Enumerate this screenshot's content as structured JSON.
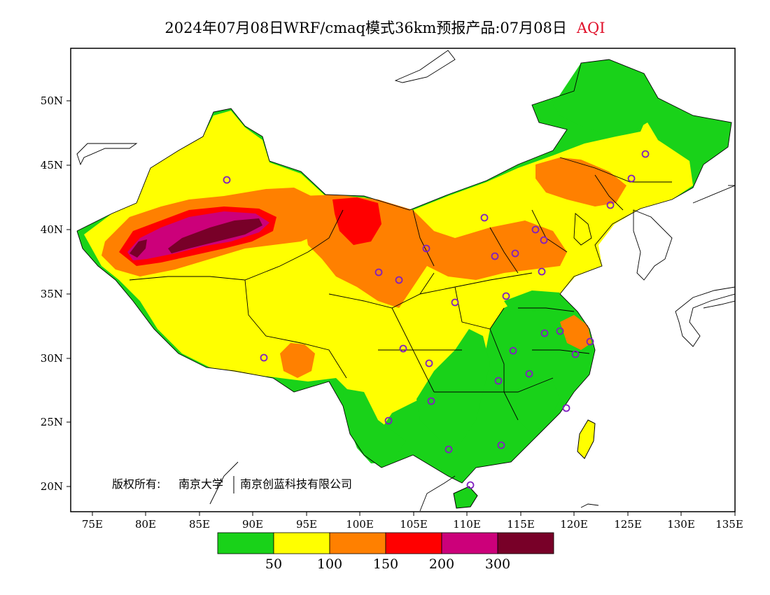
{
  "title": {
    "main": "2024年07月08日WRF/cmaq模式36km预报产品:07月08日",
    "variable": "AQI"
  },
  "axes": {
    "y_ticks": [
      "50N",
      "45N",
      "40N",
      "35N",
      "30N",
      "25N",
      "20N"
    ],
    "x_ticks": [
      "75E",
      "80E",
      "85E",
      "90E",
      "95E",
      "100E",
      "105E",
      "110E",
      "115E",
      "120E",
      "125E",
      "130E",
      "135E"
    ]
  },
  "copyright": {
    "label": "版权所有:",
    "org1": "南京大学",
    "org2": "南京创蓝科技有限公司"
  },
  "legend": {
    "colors": [
      "#19d219",
      "#ffff00",
      "#ff8000",
      "#ff0000",
      "#cc007a",
      "#780028"
    ],
    "labels": [
      "50",
      "100",
      "150",
      "200",
      "300"
    ]
  },
  "colors": {
    "good": "#19d219",
    "moderate": "#ffff00",
    "sensitive": "#ff8000",
    "unhealthy": "#ff0000",
    "very_unhealthy": "#cc007a",
    "hazardous": "#780028",
    "station_marker": "#8020c0"
  },
  "map": {
    "lon_range": [
      73,
      135
    ],
    "lat_range": [
      18,
      54
    ],
    "station_marker_count": 31
  }
}
